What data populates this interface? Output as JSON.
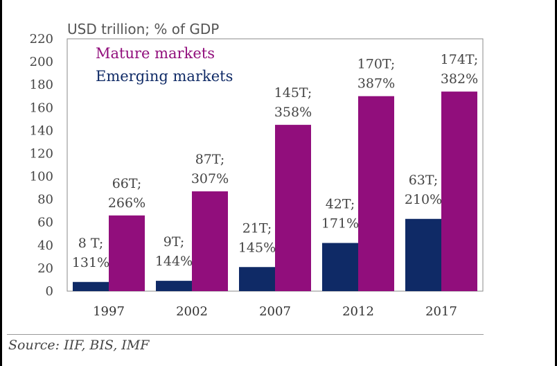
{
  "chart_data": {
    "type": "bar",
    "unit_label": "USD trillion; % of GDP",
    "categories": [
      "1997",
      "2002",
      "2007",
      "2012",
      "2017"
    ],
    "ylim": [
      0,
      220
    ],
    "yticks": [
      0,
      20,
      40,
      60,
      80,
      100,
      120,
      140,
      160,
      180,
      200,
      220
    ],
    "grid": false,
    "legend_position": "top-left",
    "series": [
      {
        "name": "Emerging markets",
        "color": "#0f2a66",
        "values": [
          8,
          9,
          21,
          42,
          63
        ],
        "labels": [
          [
            "8 T;",
            "131%"
          ],
          [
            "9T;",
            "144%"
          ],
          [
            "21T;",
            "145%"
          ],
          [
            "42T;",
            "171%"
          ],
          [
            "63T;",
            "210%"
          ]
        ]
      },
      {
        "name": "Mature markets",
        "color": "#910e7c",
        "values": [
          66,
          87,
          145,
          170,
          174
        ],
        "labels": [
          [
            "66T;",
            "266%"
          ],
          [
            "87T;",
            "307%"
          ],
          [
            "145T;",
            "358%"
          ],
          [
            "170T;",
            "387%"
          ],
          [
            "174T;",
            "382%"
          ]
        ]
      }
    ]
  },
  "source": "Source: IIF, BIS, IMF"
}
